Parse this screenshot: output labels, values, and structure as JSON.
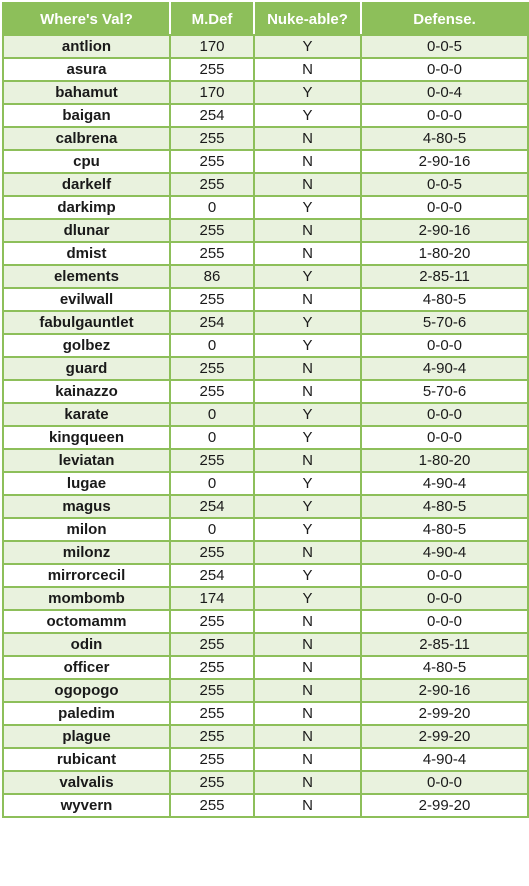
{
  "columns": [
    "Where's Val?",
    "M.Def",
    "Nuke-able?",
    "Defense."
  ],
  "rows": [
    [
      "antlion",
      "170",
      "Y",
      "0-0-5"
    ],
    [
      "asura",
      "255",
      "N",
      "0-0-0"
    ],
    [
      "bahamut",
      "170",
      "Y",
      "0-0-4"
    ],
    [
      "baigan",
      "254",
      "Y",
      "0-0-0"
    ],
    [
      "calbrena",
      "255",
      "N",
      "4-80-5"
    ],
    [
      "cpu",
      "255",
      "N",
      "2-90-16"
    ],
    [
      "darkelf",
      "255",
      "N",
      "0-0-5"
    ],
    [
      "darkimp",
      "0",
      "Y",
      "0-0-0"
    ],
    [
      "dlunar",
      "255",
      "N",
      "2-90-16"
    ],
    [
      "dmist",
      "255",
      "N",
      "1-80-20"
    ],
    [
      "elements",
      "86",
      "Y",
      "2-85-11"
    ],
    [
      "evilwall",
      "255",
      "N",
      "4-80-5"
    ],
    [
      "fabulgauntlet",
      "254",
      "Y",
      "5-70-6"
    ],
    [
      "golbez",
      "0",
      "Y",
      "0-0-0"
    ],
    [
      "guard",
      "255",
      "N",
      "4-90-4"
    ],
    [
      "kainazzo",
      "255",
      "N",
      "5-70-6"
    ],
    [
      "karate",
      "0",
      "Y",
      "0-0-0"
    ],
    [
      "kingqueen",
      "0",
      "Y",
      "0-0-0"
    ],
    [
      "leviatan",
      "255",
      "N",
      "1-80-20"
    ],
    [
      "lugae",
      "0",
      "Y",
      "4-90-4"
    ],
    [
      "magus",
      "254",
      "Y",
      "4-80-5"
    ],
    [
      "milon",
      "0",
      "Y",
      "4-80-5"
    ],
    [
      "milonz",
      "255",
      "N",
      "4-90-4"
    ],
    [
      "mirrorcecil",
      "254",
      "Y",
      "0-0-0"
    ],
    [
      "mombomb",
      "174",
      "Y",
      "0-0-0"
    ],
    [
      "octomamm",
      "255",
      "N",
      "0-0-0"
    ],
    [
      "odin",
      "255",
      "N",
      "2-85-11"
    ],
    [
      "officer",
      "255",
      "N",
      "4-80-5"
    ],
    [
      "ogopogo",
      "255",
      "N",
      "2-90-16"
    ],
    [
      "paledim",
      "255",
      "N",
      "2-99-20"
    ],
    [
      "plague",
      "255",
      "N",
      "2-99-20"
    ],
    [
      "rubicant",
      "255",
      "N",
      "4-90-4"
    ],
    [
      "valvalis",
      "255",
      "N",
      "0-0-0"
    ],
    [
      "wyvern",
      "255",
      "N",
      "2-99-20"
    ]
  ],
  "colors": {
    "header_bg": "#8dbf5a",
    "header_text": "#ffffff",
    "border": "#8dbf5a",
    "stripe": "#e9f2de"
  }
}
